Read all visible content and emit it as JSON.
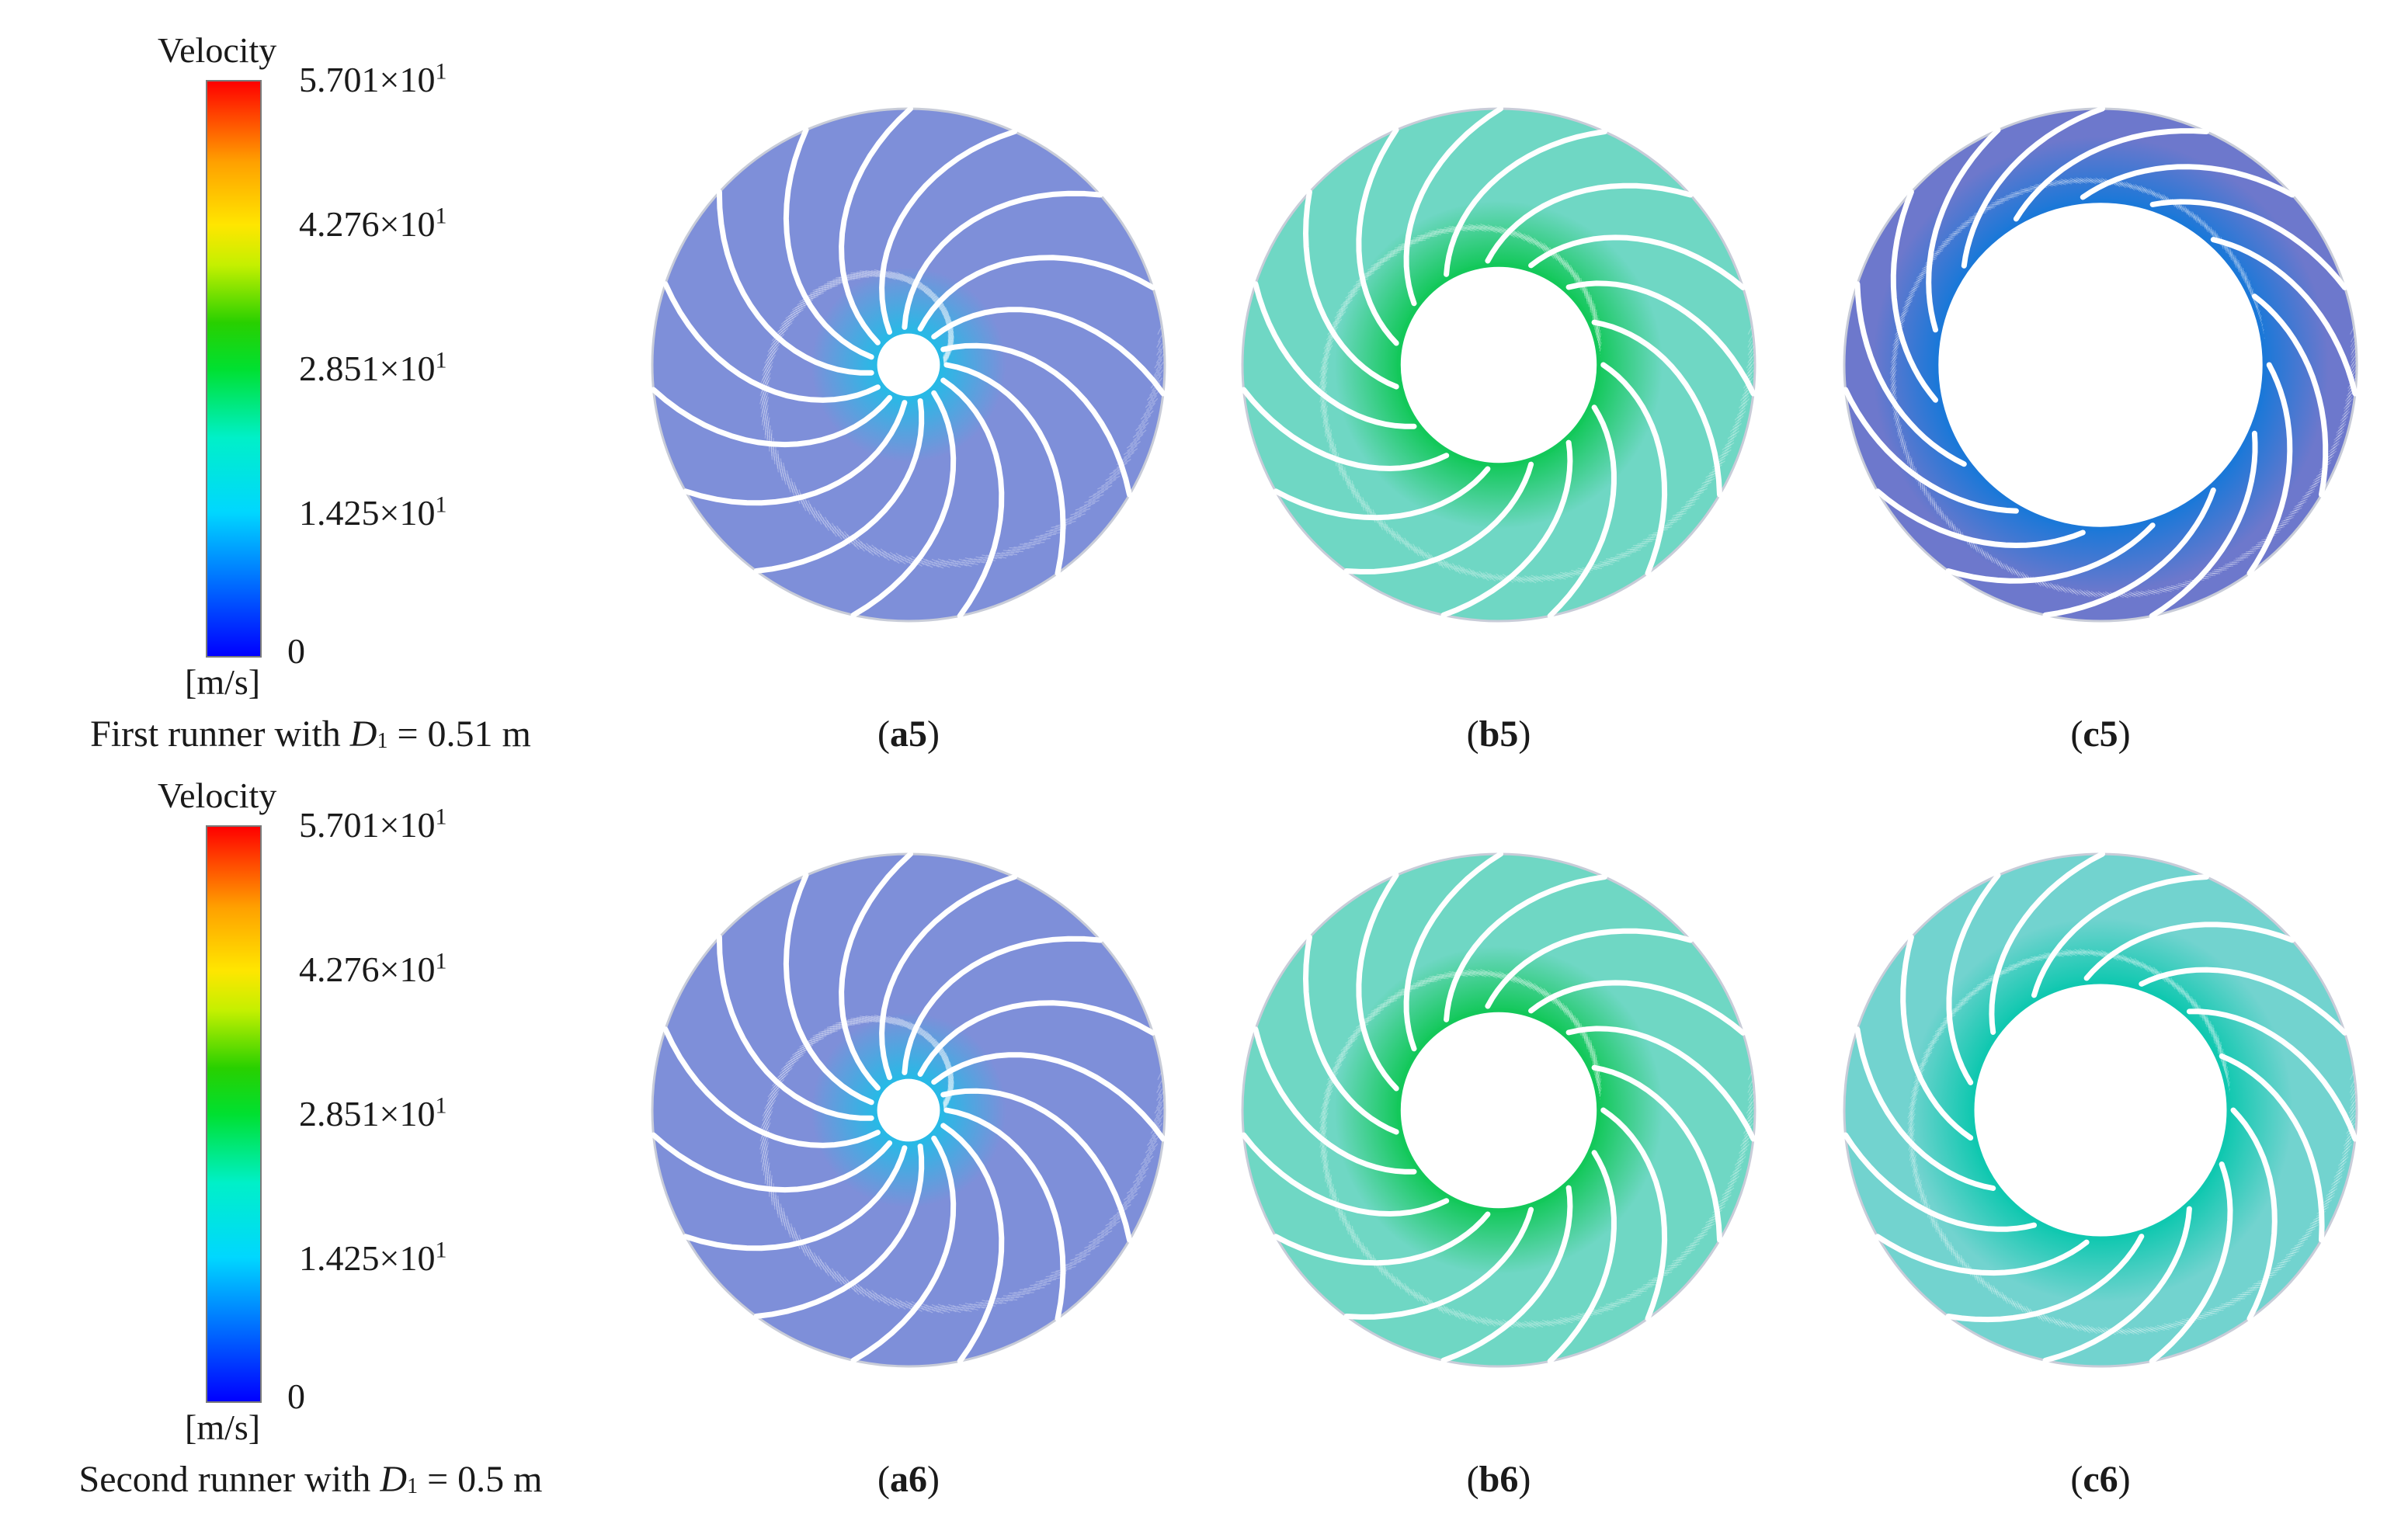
{
  "legend": {
    "title": "Velocity",
    "ticks": [
      "5.701×10",
      "4.276×10",
      "2.851×10",
      "1.425×10"
    ],
    "tick_exponent": "1",
    "zero": "0",
    "unit": "[m/s]",
    "colors": [
      "#0000ff",
      "#00d7ff",
      "#00e030",
      "#ffe600",
      "#ff0000"
    ]
  },
  "rows": [
    {
      "caption_prefix": "First runner with ",
      "caption_var": "D",
      "caption_sub": "1",
      "caption_suffix": " = 0.51 m",
      "panels": [
        {
          "letter": "a",
          "num": "5",
          "hub_ratio": 0.13,
          "tint": "#7e8fd9",
          "inner": "#28b9e6"
        },
        {
          "letter": "b",
          "num": "5",
          "hub_ratio": 0.39,
          "tint": "#6fd7c4",
          "inner": "#13c85a"
        },
        {
          "letter": "c",
          "num": "5",
          "hub_ratio": 0.64,
          "tint": "#6d78cc",
          "inner": "#1b78d8"
        }
      ]
    },
    {
      "caption_prefix": "Second runner with ",
      "caption_var": "D",
      "caption_sub": "1",
      "caption_suffix": " = 0.5 m",
      "panels": [
        {
          "letter": "a",
          "num": "6",
          "hub_ratio": 0.13,
          "tint": "#7e8fd9",
          "inner": "#28b9e6"
        },
        {
          "letter": "b",
          "num": "6",
          "hub_ratio": 0.39,
          "tint": "#6fd7c4",
          "inner": "#13c85a"
        },
        {
          "letter": "c",
          "num": "6",
          "hub_ratio": 0.5,
          "tint": "#72d3cf",
          "inner": "#10c8b0"
        }
      ]
    }
  ]
}
